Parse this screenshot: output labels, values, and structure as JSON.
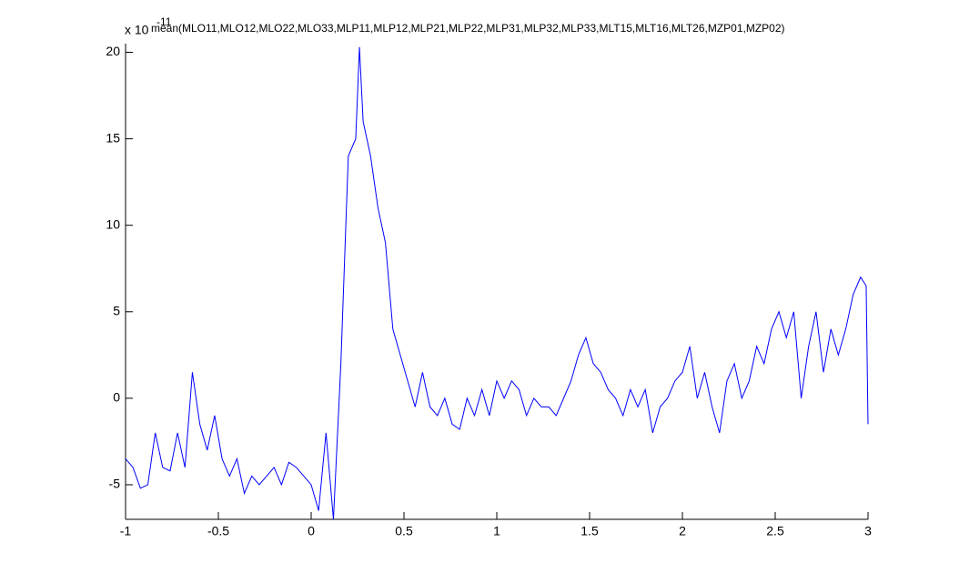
{
  "chart_data": {
    "type": "line",
    "title": "mean(MLO11,MLO12,MLO22,MLO33,MLP11,MLP12,MLP21,MLP22,MLP31,MLP32,MLP33,MLT15,MLT16,MLT26,MZP01,MZP02)",
    "y_exponent_base": "x 10",
    "y_exponent": "-11",
    "x": [
      -1,
      -0.96,
      -0.92,
      -0.88,
      -0.84,
      -0.8,
      -0.76,
      -0.72,
      -0.68,
      -0.64,
      -0.6,
      -0.56,
      -0.52,
      -0.48,
      -0.44,
      -0.4,
      -0.36,
      -0.32,
      -0.28,
      -0.24,
      -0.2,
      -0.16,
      -0.12,
      -0.08,
      -0.04,
      0,
      0.04,
      0.08,
      0.12,
      0.16,
      0.2,
      0.24,
      0.26,
      0.28,
      0.32,
      0.36,
      0.4,
      0.44,
      0.48,
      0.52,
      0.56,
      0.6,
      0.64,
      0.68,
      0.72,
      0.76,
      0.8,
      0.84,
      0.88,
      0.92,
      0.96,
      1,
      1.04,
      1.08,
      1.12,
      1.16,
      1.2,
      1.24,
      1.28,
      1.32,
      1.36,
      1.4,
      1.44,
      1.48,
      1.52,
      1.56,
      1.6,
      1.64,
      1.68,
      1.72,
      1.76,
      1.8,
      1.84,
      1.88,
      1.92,
      1.96,
      2,
      2.04,
      2.08,
      2.12,
      2.16,
      2.2,
      2.24,
      2.28,
      2.32,
      2.36,
      2.4,
      2.44,
      2.48,
      2.52,
      2.56,
      2.6,
      2.64,
      2.68,
      2.72,
      2.76,
      2.8,
      2.84,
      2.88,
      2.92,
      2.96,
      2.99,
      3
    ],
    "series": [
      {
        "color": "#0000ff",
        "values": [
          -3.5,
          -4,
          -5.2,
          -5,
          -2,
          -4,
          -4.2,
          -2,
          -4,
          1.5,
          -1.5,
          -3,
          -1,
          -3.5,
          -4.5,
          -3.5,
          -5.5,
          -4.5,
          -5,
          -4.5,
          -4,
          -5,
          -3.7,
          -4,
          -4.5,
          -5,
          -6.5,
          -2,
          -7,
          2,
          14,
          15,
          20.3,
          16,
          14,
          11,
          9,
          4,
          2.5,
          1,
          -0.5,
          1.5,
          -0.5,
          -1,
          0,
          -1.5,
          -1.8,
          0,
          -1,
          0.5,
          -1,
          1,
          0,
          1,
          0.5,
          -1,
          0,
          -0.5,
          -0.5,
          -1,
          0,
          1,
          2.5,
          3.5,
          2,
          1.5,
          0.5,
          0,
          -1,
          0.5,
          -0.5,
          0.5,
          -2,
          -0.5,
          0,
          1,
          1.5,
          3,
          0,
          1.5,
          -0.5,
          -2,
          1,
          2,
          0,
          1,
          3,
          2,
          4,
          5,
          3.5,
          5,
          0,
          3,
          5,
          1.5,
          4,
          2.5,
          4,
          6,
          7,
          6.5,
          -1.5
        ]
      }
    ],
    "xlim": [
      -1,
      3
    ],
    "ylim": [
      -7,
      20.5
    ],
    "xticks": [
      -1,
      -0.5,
      0,
      0.5,
      1,
      1.5,
      2,
      2.5,
      3
    ],
    "yticks": [
      -5,
      0,
      5,
      10,
      15,
      20
    ]
  }
}
